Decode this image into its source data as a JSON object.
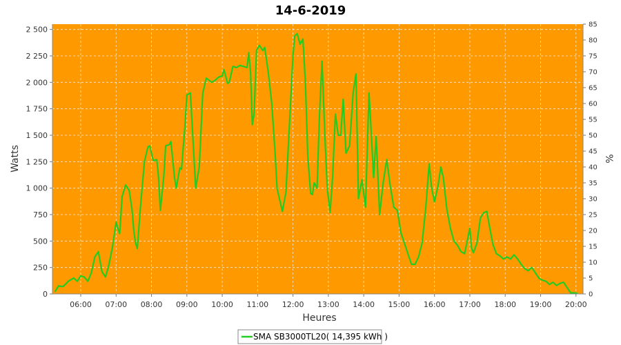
{
  "chart_data": {
    "type": "line",
    "title": "14-6-2019",
    "xlabel": "Heures",
    "ylabel": "Watts",
    "y2label": "%",
    "xlim": [
      5.2,
      20.2
    ],
    "ylim": [
      0,
      2550
    ],
    "y2lim": [
      0,
      85
    ],
    "x_ticks": [
      {
        "v": 6,
        "label": "06:00"
      },
      {
        "v": 7,
        "label": "07:00"
      },
      {
        "v": 8,
        "label": "08:00"
      },
      {
        "v": 9,
        "label": "09:00"
      },
      {
        "v": 10,
        "label": "10:00"
      },
      {
        "v": 11,
        "label": "11:00"
      },
      {
        "v": 12,
        "label": "12:00"
      },
      {
        "v": 13,
        "label": "13:00"
      },
      {
        "v": 14,
        "label": "14:00"
      },
      {
        "v": 15,
        "label": "15:00"
      },
      {
        "v": 16,
        "label": "16:00"
      },
      {
        "v": 17,
        "label": "17:00"
      },
      {
        "v": 18,
        "label": "18:00"
      },
      {
        "v": 19,
        "label": "19:00"
      },
      {
        "v": 20,
        "label": "20:00"
      }
    ],
    "y_ticks": [
      {
        "v": 0,
        "label": "0"
      },
      {
        "v": 250,
        "label": "250"
      },
      {
        "v": 500,
        "label": "500"
      },
      {
        "v": 750,
        "label": "750"
      },
      {
        "v": 1000,
        "label": "1 000"
      },
      {
        "v": 1250,
        "label": "1 250"
      },
      {
        "v": 1500,
        "label": "1 500"
      },
      {
        "v": 1750,
        "label": "1 750"
      },
      {
        "v": 2000,
        "label": "2 000"
      },
      {
        "v": 2250,
        "label": "2 250"
      },
      {
        "v": 2500,
        "label": "2 500"
      }
    ],
    "y2_ticks": [
      {
        "v": 0,
        "label": "0"
      },
      {
        "v": 5,
        "label": "5"
      },
      {
        "v": 10,
        "label": "10"
      },
      {
        "v": 15,
        "label": "15"
      },
      {
        "v": 20,
        "label": "20"
      },
      {
        "v": 25,
        "label": "25"
      },
      {
        "v": 30,
        "label": "30"
      },
      {
        "v": 35,
        "label": "35"
      },
      {
        "v": 40,
        "label": "40"
      },
      {
        "v": 45,
        "label": "45"
      },
      {
        "v": 50,
        "label": "50"
      },
      {
        "v": 55,
        "label": "55"
      },
      {
        "v": 60,
        "label": "60"
      },
      {
        "v": 65,
        "label": "65"
      },
      {
        "v": 70,
        "label": "70"
      },
      {
        "v": 75,
        "label": "75"
      },
      {
        "v": 80,
        "label": "80"
      },
      {
        "v": 85,
        "label": "85"
      }
    ],
    "grid": true,
    "legend_position": "bottom",
    "colors": {
      "plot_bg": "#FF9900",
      "line": "#22CC22",
      "grid": "#FFFFFF"
    },
    "series": [
      {
        "name": "SMA SB3000TL20( 14,395 kWh )",
        "points": [
          [
            5.27,
            20
          ],
          [
            5.37,
            75
          ],
          [
            5.5,
            70
          ],
          [
            5.65,
            120
          ],
          [
            5.8,
            150
          ],
          [
            5.9,
            120
          ],
          [
            6.0,
            170
          ],
          [
            6.1,
            160
          ],
          [
            6.2,
            120
          ],
          [
            6.3,
            200
          ],
          [
            6.4,
            350
          ],
          [
            6.5,
            400
          ],
          [
            6.6,
            210
          ],
          [
            6.7,
            160
          ],
          [
            6.8,
            280
          ],
          [
            6.9,
            450
          ],
          [
            7.0,
            680
          ],
          [
            7.05,
            620
          ],
          [
            7.1,
            570
          ],
          [
            7.17,
            920
          ],
          [
            7.27,
            1030
          ],
          [
            7.37,
            980
          ],
          [
            7.45,
            800
          ],
          [
            7.5,
            600
          ],
          [
            7.55,
            480
          ],
          [
            7.6,
            430
          ],
          [
            7.7,
            870
          ],
          [
            7.8,
            1250
          ],
          [
            7.9,
            1390
          ],
          [
            7.95,
            1400
          ],
          [
            8.05,
            1260
          ],
          [
            8.15,
            1270
          ],
          [
            8.2,
            1100
          ],
          [
            8.25,
            790
          ],
          [
            8.35,
            1120
          ],
          [
            8.4,
            1400
          ],
          [
            8.5,
            1410
          ],
          [
            8.55,
            1440
          ],
          [
            8.65,
            1100
          ],
          [
            8.7,
            1000
          ],
          [
            8.8,
            1190
          ],
          [
            8.85,
            1180
          ],
          [
            8.95,
            1600
          ],
          [
            9.0,
            1880
          ],
          [
            9.1,
            1900
          ],
          [
            9.15,
            1600
          ],
          [
            9.25,
            1000
          ],
          [
            9.35,
            1200
          ],
          [
            9.45,
            1900
          ],
          [
            9.55,
            2040
          ],
          [
            9.7,
            2000
          ],
          [
            9.8,
            2020
          ],
          [
            9.9,
            2050
          ],
          [
            10.0,
            2060
          ],
          [
            10.05,
            2120
          ],
          [
            10.15,
            1990
          ],
          [
            10.2,
            2000
          ],
          [
            10.3,
            2150
          ],
          [
            10.4,
            2140
          ],
          [
            10.5,
            2160
          ],
          [
            10.6,
            2150
          ],
          [
            10.7,
            2140
          ],
          [
            10.75,
            2280
          ],
          [
            10.8,
            2100
          ],
          [
            10.85,
            1600
          ],
          [
            10.9,
            1700
          ],
          [
            10.97,
            2300
          ],
          [
            11.05,
            2350
          ],
          [
            11.15,
            2300
          ],
          [
            11.2,
            2330
          ],
          [
            11.3,
            2100
          ],
          [
            11.4,
            1800
          ],
          [
            11.5,
            1300
          ],
          [
            11.55,
            1000
          ],
          [
            11.7,
            780
          ],
          [
            11.8,
            960
          ],
          [
            11.9,
            1600
          ],
          [
            12.0,
            2250
          ],
          [
            12.05,
            2440
          ],
          [
            12.12,
            2460
          ],
          [
            12.2,
            2360
          ],
          [
            12.28,
            2410
          ],
          [
            12.35,
            2000
          ],
          [
            12.42,
            1300
          ],
          [
            12.5,
            950
          ],
          [
            12.55,
            940
          ],
          [
            12.6,
            1050
          ],
          [
            12.68,
            1000
          ],
          [
            12.75,
            1700
          ],
          [
            12.82,
            2200
          ],
          [
            12.9,
            1500
          ],
          [
            12.97,
            1000
          ],
          [
            13.05,
            770
          ],
          [
            13.12,
            1100
          ],
          [
            13.2,
            1700
          ],
          [
            13.28,
            1500
          ],
          [
            13.35,
            1500
          ],
          [
            13.42,
            1840
          ],
          [
            13.5,
            1330
          ],
          [
            13.6,
            1400
          ],
          [
            13.7,
            1900
          ],
          [
            13.78,
            2080
          ],
          [
            13.85,
            900
          ],
          [
            13.95,
            1080
          ],
          [
            14.05,
            820
          ],
          [
            14.15,
            1900
          ],
          [
            14.2,
            1600
          ],
          [
            14.28,
            1100
          ],
          [
            14.35,
            1490
          ],
          [
            14.45,
            750
          ],
          [
            14.55,
            1050
          ],
          [
            14.65,
            1270
          ],
          [
            14.75,
            1020
          ],
          [
            14.85,
            820
          ],
          [
            14.95,
            790
          ],
          [
            15.05,
            580
          ],
          [
            15.15,
            480
          ],
          [
            15.25,
            380
          ],
          [
            15.35,
            280
          ],
          [
            15.45,
            280
          ],
          [
            15.55,
            350
          ],
          [
            15.65,
            480
          ],
          [
            15.75,
            800
          ],
          [
            15.85,
            1230
          ],
          [
            15.92,
            1000
          ],
          [
            16.0,
            870
          ],
          [
            16.1,
            1020
          ],
          [
            16.18,
            1200
          ],
          [
            16.25,
            1100
          ],
          [
            16.35,
            800
          ],
          [
            16.45,
            620
          ],
          [
            16.55,
            500
          ],
          [
            16.65,
            460
          ],
          [
            16.75,
            400
          ],
          [
            16.85,
            380
          ],
          [
            16.95,
            540
          ],
          [
            17.0,
            620
          ],
          [
            17.05,
            430
          ],
          [
            17.1,
            390
          ],
          [
            17.2,
            480
          ],
          [
            17.3,
            720
          ],
          [
            17.4,
            770
          ],
          [
            17.48,
            780
          ],
          [
            17.55,
            650
          ],
          [
            17.65,
            470
          ],
          [
            17.75,
            380
          ],
          [
            17.85,
            360
          ],
          [
            17.95,
            330
          ],
          [
            18.05,
            350
          ],
          [
            18.15,
            330
          ],
          [
            18.25,
            370
          ],
          [
            18.35,
            330
          ],
          [
            18.45,
            280
          ],
          [
            18.55,
            240
          ],
          [
            18.65,
            220
          ],
          [
            18.75,
            250
          ],
          [
            18.85,
            200
          ],
          [
            18.95,
            150
          ],
          [
            19.05,
            130
          ],
          [
            19.15,
            120
          ],
          [
            19.25,
            90
          ],
          [
            19.35,
            110
          ],
          [
            19.45,
            80
          ],
          [
            19.55,
            100
          ],
          [
            19.65,
            110
          ],
          [
            19.75,
            60
          ],
          [
            19.85,
            10
          ],
          [
            19.95,
            10
          ],
          [
            20.05,
            5
          ]
        ]
      }
    ]
  }
}
